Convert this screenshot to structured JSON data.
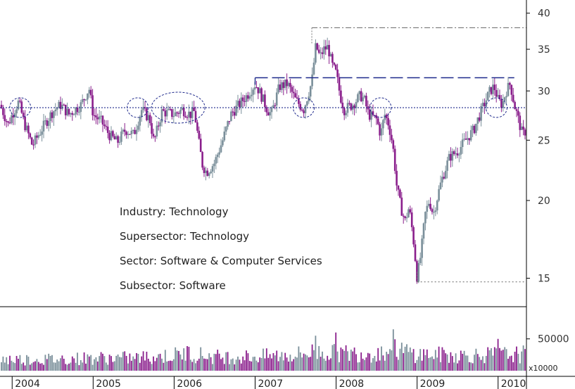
{
  "chart_data": {
    "type": "candlestick",
    "title": "",
    "x_range": [
      2003.85,
      2010.35
    ],
    "years": [
      "2004",
      "2005",
      "2006",
      "2007",
      "2008",
      "2009",
      "2010"
    ],
    "price_axis": {
      "scale": "log",
      "ylim": [
        13.5,
        42
      ],
      "ticks": [
        15,
        20,
        25,
        30,
        35,
        40
      ]
    },
    "volume_axis": {
      "ylim": [
        0,
        95000
      ],
      "ticks": [
        50000
      ],
      "unit_label": "x10000"
    },
    "annotations": {
      "lines": [
        "Industry: Technology",
        "Supersector: Technology",
        "Sector: Software & Computer Services",
        "Subsector: Software"
      ]
    },
    "reference_lines": [
      {
        "style": "dotted",
        "color": "#1f2a8c",
        "y": 28.2,
        "x_start": 2003.85,
        "x_end": 2010.35
      },
      {
        "style": "long-dash",
        "color": "#1f2a8c",
        "y": 31.5,
        "x_start": 2007.0,
        "x_end": 2010.2
      },
      {
        "style": "dash-dot",
        "color": "#777777",
        "y": 37.9,
        "x_start": 2007.7,
        "x_end": 2010.35
      },
      {
        "style": "dotted-short",
        "color": "#777777",
        "y": 14.8,
        "x_start": 2009.0,
        "x_end": 2010.35
      }
    ],
    "support_ellipses": [
      {
        "x": 2004.1,
        "y": 28.2
      },
      {
        "x": 2005.55,
        "y": 28.2
      },
      {
        "x": 2006.05,
        "y": 28.2
      },
      {
        "x": 2007.6,
        "y": 28.2
      },
      {
        "x": 2008.55,
        "y": 28.2
      },
      {
        "x": 2009.98,
        "y": 28.2
      }
    ],
    "price_path": [
      [
        2003.85,
        28.5
      ],
      [
        2003.95,
        26.5
      ],
      [
        2004.0,
        27.5
      ],
      [
        2004.08,
        28.8
      ],
      [
        2004.15,
        26.6
      ],
      [
        2004.25,
        24.5
      ],
      [
        2004.4,
        26.5
      ],
      [
        2004.5,
        27.8
      ],
      [
        2004.6,
        28.5
      ],
      [
        2004.7,
        27.5
      ],
      [
        2004.85,
        28.5
      ],
      [
        2004.95,
        30.3
      ],
      [
        2005.0,
        27.5
      ],
      [
        2005.1,
        26.8
      ],
      [
        2005.2,
        25.5
      ],
      [
        2005.3,
        24.8
      ],
      [
        2005.4,
        26.0
      ],
      [
        2005.5,
        25.5
      ],
      [
        2005.6,
        28.0
      ],
      [
        2005.7,
        27.0
      ],
      [
        2005.75,
        24.8
      ],
      [
        2005.85,
        27.8
      ],
      [
        2006.0,
        27.5
      ],
      [
        2006.1,
        28.0
      ],
      [
        2006.2,
        27.5
      ],
      [
        2006.25,
        27.8
      ],
      [
        2006.3,
        25.0
      ],
      [
        2006.35,
        22.8
      ],
      [
        2006.4,
        22.2
      ],
      [
        2006.5,
        23.0
      ],
      [
        2006.6,
        25.0
      ],
      [
        2006.7,
        27.5
      ],
      [
        2006.8,
        28.5
      ],
      [
        2006.9,
        29.5
      ],
      [
        2007.0,
        30.8
      ],
      [
        2007.05,
        30.0
      ],
      [
        2007.15,
        28.0
      ],
      [
        2007.2,
        27.5
      ],
      [
        2007.3,
        30.5
      ],
      [
        2007.4,
        30.8
      ],
      [
        2007.5,
        29.0
      ],
      [
        2007.6,
        28.0
      ],
      [
        2007.7,
        31.0
      ],
      [
        2007.75,
        35.5
      ],
      [
        2007.8,
        34.0
      ],
      [
        2007.85,
        35.0
      ],
      [
        2007.9,
        35.3
      ],
      [
        2007.95,
        33.0
      ],
      [
        2008.0,
        32.0
      ],
      [
        2008.05,
        29.5
      ],
      [
        2008.1,
        28.0
      ],
      [
        2008.2,
        28.5
      ],
      [
        2008.3,
        29.5
      ],
      [
        2008.35,
        29.0
      ],
      [
        2008.4,
        27.5
      ],
      [
        2008.5,
        27.0
      ],
      [
        2008.55,
        25.5
      ],
      [
        2008.6,
        27.5
      ],
      [
        2008.65,
        26.5
      ],
      [
        2008.7,
        24.5
      ],
      [
        2008.75,
        21.0
      ],
      [
        2008.8,
        19.5
      ],
      [
        2008.85,
        18.5
      ],
      [
        2008.9,
        19.5
      ],
      [
        2008.95,
        17.5
      ],
      [
        2009.0,
        15.0
      ],
      [
        2009.05,
        16.5
      ],
      [
        2009.1,
        19.0
      ],
      [
        2009.15,
        20.0
      ],
      [
        2009.2,
        19.0
      ],
      [
        2009.3,
        21.5
      ],
      [
        2009.4,
        23.5
      ],
      [
        2009.5,
        24.0
      ],
      [
        2009.6,
        25.0
      ],
      [
        2009.7,
        26.0
      ],
      [
        2009.8,
        28.0
      ],
      [
        2009.9,
        30.0
      ],
      [
        2009.95,
        30.5
      ],
      [
        2010.0,
        29.0
      ],
      [
        2010.05,
        28.5
      ],
      [
        2010.1,
        30.0
      ],
      [
        2010.15,
        30.8
      ],
      [
        2010.2,
        28.5
      ],
      [
        2010.25,
        27.0
      ],
      [
        2010.3,
        25.5
      ],
      [
        2010.35,
        26.0
      ]
    ],
    "volume_path": [
      [
        2003.85,
        18000
      ],
      [
        2004.5,
        18000
      ],
      [
        2005.0,
        20000
      ],
      [
        2005.5,
        20000
      ],
      [
        2006.0,
        24000
      ],
      [
        2006.15,
        28000
      ],
      [
        2006.5,
        22000
      ],
      [
        2007.0,
        22000
      ],
      [
        2007.5,
        25000
      ],
      [
        2007.75,
        30000
      ],
      [
        2008.0,
        27000
      ],
      [
        2008.5,
        28000
      ],
      [
        2008.75,
        33000
      ],
      [
        2009.0,
        26000
      ],
      [
        2009.5,
        24000
      ],
      [
        2010.0,
        25000
      ],
      [
        2010.35,
        26000
      ]
    ],
    "volume_spikes": [
      [
        2006.15,
        90000
      ],
      [
        2007.75,
        55000
      ],
      [
        2008.0,
        60000
      ],
      [
        2008.65,
        72000
      ],
      [
        2008.7,
        65000
      ],
      [
        2010.0,
        50000
      ],
      [
        2010.3,
        55000
      ]
    ],
    "colors": {
      "up": "#7a8f9a",
      "down": "#8a1f8c",
      "reference": "#1f2a8c",
      "annotation_line": "#777777",
      "grid": "#000000"
    }
  }
}
